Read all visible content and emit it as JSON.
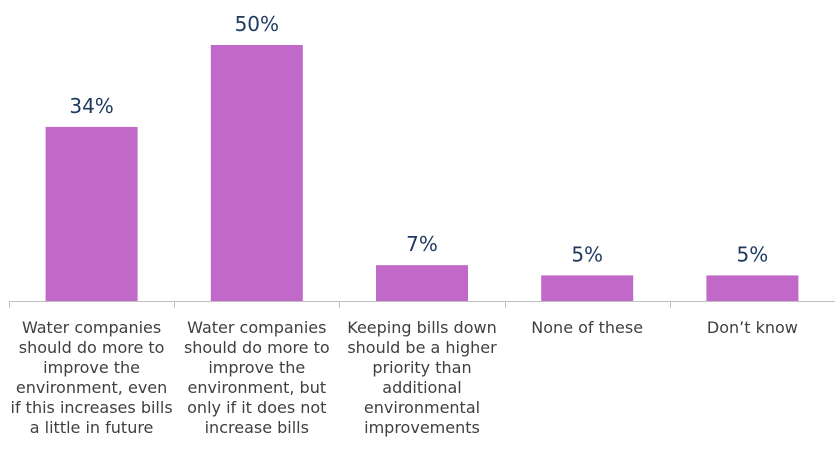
{
  "chart_data": {
    "type": "bar",
    "categories": [
      "Water companies should do more to improve the environment, even if this increases bills a little in future",
      "Water companies should do more to improve the environment, but only if it does not increase bills",
      "Keeping bills down should be a higher priority than additional environmental improvements",
      "None of these",
      "Don’t know"
    ],
    "values": [
      34,
      50,
      7,
      5,
      5
    ],
    "value_labels": [
      "34%",
      "50%",
      "7%",
      "5%",
      "5%"
    ],
    "ylim": [
      0,
      50
    ],
    "grid": false,
    "bar_color": "#c169c9",
    "axis_color": "#bfbfbf",
    "value_label_color": "#1f3a5f",
    "category_label_color": "#404040"
  }
}
